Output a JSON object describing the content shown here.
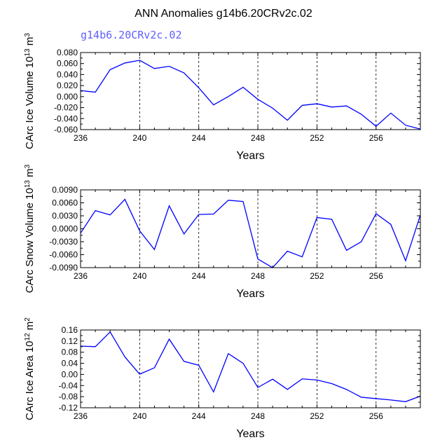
{
  "title": "ANN Anomalies g14b6.20CRv2c.02",
  "subtitle": "g14b6.20CRv2c.02",
  "colors": {
    "line": "#0000ff",
    "subtitle": "#6060ff",
    "axes": "#000000",
    "grid": "#000000"
  },
  "chart_data": [
    {
      "type": "line",
      "series_name": "g14b6.20CRv2c.02",
      "ylabel": {
        "main": "CArc Ice Volume 10",
        "exp": "13",
        "unit": " m",
        "unit_exp": "3"
      },
      "xlabel": "Years",
      "xlim": [
        236,
        259
      ],
      "ylim": [
        -0.06,
        0.08
      ],
      "xticks": [
        236,
        240,
        244,
        248,
        252,
        256
      ],
      "xtick_labels": [
        "236",
        "240",
        "244",
        "248",
        "252",
        "256"
      ],
      "yticks": [
        -0.06,
        -0.04,
        -0.02,
        0.0,
        0.02,
        0.04,
        0.06,
        0.08
      ],
      "ytick_labels": [
        "-0.060",
        "-0.040",
        "-0.020",
        "0.000",
        "0.020",
        "0.040",
        "0.060",
        "0.080"
      ],
      "grid_x": [
        240,
        244,
        248,
        252,
        256
      ],
      "x": [
        236,
        237,
        238,
        239,
        240,
        241,
        242,
        243,
        244,
        245,
        246,
        247,
        248,
        249,
        250,
        251,
        252,
        253,
        254,
        255,
        256,
        257,
        258,
        259
      ],
      "values": [
        0.011,
        0.008,
        0.049,
        0.061,
        0.066,
        0.051,
        0.055,
        0.043,
        0.016,
        -0.015,
        0.0,
        0.017,
        -0.005,
        -0.021,
        -0.043,
        -0.016,
        -0.013,
        -0.019,
        -0.017,
        -0.032,
        -0.054,
        -0.03,
        -0.052,
        -0.059
      ]
    },
    {
      "type": "line",
      "series_name": "g14b6.20CRv2c.02",
      "ylabel": {
        "main": "CArc Snow Volume 10",
        "exp": "13",
        "unit": " m",
        "unit_exp": "3"
      },
      "xlabel": "Years",
      "xlim": [
        236,
        259
      ],
      "ylim": [
        -0.009,
        0.009
      ],
      "xticks": [
        236,
        240,
        244,
        248,
        252,
        256
      ],
      "xtick_labels": [
        "236",
        "240",
        "244",
        "248",
        "252",
        "256"
      ],
      "yticks": [
        -0.009,
        -0.006,
        -0.003,
        0.0,
        0.003,
        0.006,
        0.009
      ],
      "ytick_labels": [
        "-0.0090",
        "-0.0060",
        "-0.0030",
        "0.0000",
        "0.0030",
        "0.0060",
        "0.0090"
      ],
      "grid_x": [
        240,
        244,
        248,
        252,
        256
      ],
      "x": [
        236,
        237,
        238,
        239,
        240,
        241,
        242,
        243,
        244,
        245,
        246,
        247,
        248,
        249,
        250,
        251,
        252,
        253,
        254,
        255,
        256,
        257,
        258,
        259
      ],
      "values": [
        -0.001,
        0.0042,
        0.0032,
        0.0068,
        -0.0005,
        -0.0048,
        0.0053,
        -0.0012,
        0.0033,
        0.0034,
        0.0066,
        0.0063,
        -0.007,
        -0.009,
        -0.0052,
        -0.0065,
        0.0026,
        0.0022,
        -0.005,
        -0.003,
        0.0035,
        0.001,
        -0.0074,
        0.0032
      ]
    },
    {
      "type": "line",
      "series_name": "g14b6.20CRv2c.02",
      "ylabel": {
        "main": "CArc Ice Area 10",
        "exp": "12",
        "unit": " m",
        "unit_exp": "2"
      },
      "xlabel": "Years",
      "xlim": [
        236,
        259
      ],
      "ylim": [
        -0.12,
        0.16
      ],
      "xticks": [
        236,
        240,
        244,
        248,
        252,
        256
      ],
      "xtick_labels": [
        "236",
        "240",
        "244",
        "248",
        "252",
        "256"
      ],
      "yticks": [
        -0.12,
        -0.08,
        -0.04,
        0.0,
        0.04,
        0.08,
        0.12,
        0.16
      ],
      "ytick_labels": [
        "-0.12",
        "-0.08",
        "-0.04",
        "0.00",
        "0.04",
        "0.08",
        "0.12",
        "0.16"
      ],
      "grid_x": [
        240,
        244,
        248,
        252,
        256
      ],
      "x": [
        236,
        237,
        238,
        239,
        240,
        241,
        242,
        243,
        244,
        245,
        246,
        247,
        248,
        249,
        250,
        251,
        252,
        253,
        254,
        255,
        256,
        257,
        258,
        259
      ],
      "values": [
        0.102,
        0.1,
        0.153,
        0.063,
        0.001,
        0.024,
        0.127,
        0.047,
        0.033,
        -0.063,
        0.075,
        0.04,
        -0.047,
        -0.017,
        -0.054,
        -0.016,
        -0.02,
        -0.033,
        -0.054,
        -0.082,
        -0.087,
        -0.092,
        -0.098,
        -0.078
      ]
    }
  ]
}
